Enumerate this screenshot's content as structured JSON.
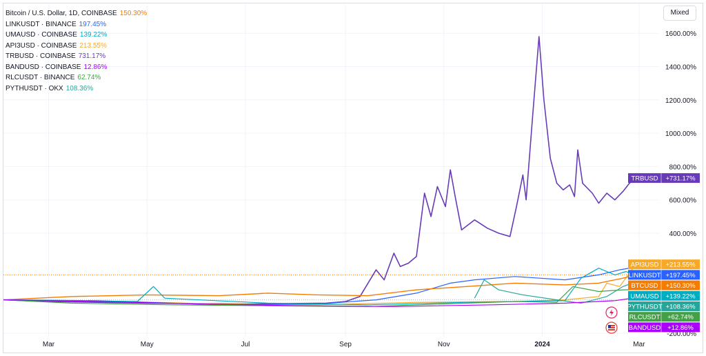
{
  "scale_button": "Mixed",
  "legend": [
    {
      "name": "Bitcoin / U.S. Dollar, 1D, COINBASE",
      "value": "150.30%",
      "color": "#f57c00"
    },
    {
      "name": "LINKUSDT · BINANCE",
      "value": "197.45%",
      "color": "#2962ff"
    },
    {
      "name": "UMAUSD · COINBASE",
      "value": "139.22%",
      "color": "#00acc1"
    },
    {
      "name": "API3USD · COINBASE",
      "value": "213.55%",
      "color": "#f9a825"
    },
    {
      "name": "TRBUSD · COINBASE",
      "value": "731.17%",
      "color": "#673ab7"
    },
    {
      "name": "BANDUSD · COINBASE",
      "value": "12.86%",
      "color": "#aa00ff"
    },
    {
      "name": "RLCUSDT · BINANCE",
      "value": "62.74%",
      "color": "#43a047"
    },
    {
      "name": "PYTHUSDT · OKX",
      "value": "108.36%",
      "color": "#26a69a"
    }
  ],
  "chart_data": {
    "type": "line",
    "y_unit": "%",
    "ylim": [
      -200,
      1700
    ],
    "y_ticks": [
      {
        "label": "1600.00%",
        "value": 1600
      },
      {
        "label": "1400.00%",
        "value": 1400
      },
      {
        "label": "1200.00%",
        "value": 1200
      },
      {
        "label": "1000.00%",
        "value": 1000
      },
      {
        "label": "800.00%",
        "value": 800
      },
      {
        "label": "600.00%",
        "value": 600
      },
      {
        "label": "400.00%",
        "value": 400
      },
      {
        "label": "-200.00%",
        "value": -200
      }
    ],
    "x_range": [
      "2023-02-01",
      "2024-03-13"
    ],
    "x_ticks": [
      {
        "label": "Mar",
        "date": "2023-03-01",
        "bold": false
      },
      {
        "label": "May",
        "date": "2023-05-01",
        "bold": false
      },
      {
        "label": "Jul",
        "date": "2023-07-01",
        "bold": false
      },
      {
        "label": "Sep",
        "date": "2023-09-01",
        "bold": false
      },
      {
        "label": "Nov",
        "date": "2023-11-01",
        "bold": false
      },
      {
        "label": "2024",
        "date": "2024-01-01",
        "bold": true
      },
      {
        "label": "Mar",
        "date": "2024-03-01",
        "bold": false
      }
    ],
    "series": [
      {
        "name": "TRBUSD",
        "label": "+731.17%",
        "color": "#673ab7",
        "width": 1.6,
        "points": [
          [
            "2023-02-01",
            0
          ],
          [
            "2023-03-01",
            -10
          ],
          [
            "2023-05-01",
            -20
          ],
          [
            "2023-07-01",
            -25
          ],
          [
            "2023-08-20",
            -20
          ],
          [
            "2023-09-01",
            -10
          ],
          [
            "2023-09-10",
            20
          ],
          [
            "2023-09-20",
            180
          ],
          [
            "2023-09-25",
            120
          ],
          [
            "2023-10-01",
            280
          ],
          [
            "2023-10-05",
            200
          ],
          [
            "2023-10-10",
            220
          ],
          [
            "2023-10-15",
            260
          ],
          [
            "2023-10-20",
            640
          ],
          [
            "2023-10-24",
            500
          ],
          [
            "2023-10-28",
            680
          ],
          [
            "2023-11-02",
            560
          ],
          [
            "2023-11-05",
            780
          ],
          [
            "2023-11-08",
            620
          ],
          [
            "2023-11-12",
            420
          ],
          [
            "2023-11-20",
            480
          ],
          [
            "2023-11-28",
            430
          ],
          [
            "2023-12-05",
            400
          ],
          [
            "2023-12-12",
            380
          ],
          [
            "2023-12-16",
            560
          ],
          [
            "2023-12-20",
            750
          ],
          [
            "2023-12-22",
            600
          ],
          [
            "2023-12-26",
            1100
          ],
          [
            "2023-12-30",
            1580
          ],
          [
            "2024-01-02",
            1200
          ],
          [
            "2024-01-06",
            850
          ],
          [
            "2024-01-10",
            700
          ],
          [
            "2024-01-14",
            660
          ],
          [
            "2024-01-18",
            690
          ],
          [
            "2024-01-21",
            620
          ],
          [
            "2024-01-23",
            900
          ],
          [
            "2024-01-26",
            700
          ],
          [
            "2024-02-01",
            640
          ],
          [
            "2024-02-05",
            580
          ],
          [
            "2024-02-10",
            640
          ],
          [
            "2024-02-15",
            600
          ],
          [
            "2024-02-20",
            650
          ],
          [
            "2024-02-24",
            700
          ],
          [
            "2024-02-28",
            731
          ]
        ]
      },
      {
        "name": "API3USD",
        "label": "+213.55%",
        "color": "#f9a825",
        "width": 1.2,
        "points": [
          [
            "2023-02-01",
            0
          ],
          [
            "2023-04-15",
            -10
          ],
          [
            "2023-06-15",
            -25
          ],
          [
            "2023-08-15",
            -30
          ],
          [
            "2023-10-15",
            -15
          ],
          [
            "2023-12-15",
            -10
          ],
          [
            "2024-01-15",
            0
          ],
          [
            "2024-02-05",
            20
          ],
          [
            "2024-02-10",
            100
          ],
          [
            "2024-02-18",
            80
          ],
          [
            "2024-02-24",
            160
          ],
          [
            "2024-02-28",
            213
          ]
        ]
      },
      {
        "name": "LINKUSDT",
        "label": "+197.45%",
        "color": "#2962ff",
        "width": 1.2,
        "points": [
          [
            "2023-02-01",
            0
          ],
          [
            "2023-04-01",
            -5
          ],
          [
            "2023-06-15",
            -30
          ],
          [
            "2023-08-15",
            -25
          ],
          [
            "2023-09-20",
            0
          ],
          [
            "2023-10-15",
            40
          ],
          [
            "2023-11-05",
            100
          ],
          [
            "2023-11-20",
            120
          ],
          [
            "2023-12-15",
            140
          ],
          [
            "2024-01-15",
            120
          ],
          [
            "2024-02-05",
            150
          ],
          [
            "2024-02-18",
            180
          ],
          [
            "2024-02-28",
            197
          ]
        ]
      },
      {
        "name": "BTCUSD",
        "label": "+150.30%",
        "color": "#f57c00",
        "width": 1.4,
        "points": [
          [
            "2023-02-01",
            0
          ],
          [
            "2023-03-15",
            20
          ],
          [
            "2023-05-01",
            30
          ],
          [
            "2023-06-15",
            25
          ],
          [
            "2023-07-15",
            40
          ],
          [
            "2023-08-15",
            30
          ],
          [
            "2023-09-15",
            25
          ],
          [
            "2023-10-15",
            60
          ],
          [
            "2023-11-15",
            80
          ],
          [
            "2023-12-15",
            100
          ],
          [
            "2024-01-15",
            90
          ],
          [
            "2024-02-05",
            100
          ],
          [
            "2024-02-20",
            130
          ],
          [
            "2024-02-28",
            150
          ]
        ]
      },
      {
        "name": "UMAUSD",
        "label": "+139.22%",
        "color": "#00acc1",
        "width": 1.2,
        "points": [
          [
            "2023-02-01",
            0
          ],
          [
            "2023-04-25",
            -10
          ],
          [
            "2023-05-05",
            80
          ],
          [
            "2023-05-12",
            10
          ],
          [
            "2023-07-15",
            -20
          ],
          [
            "2023-09-15",
            -30
          ],
          [
            "2023-11-15",
            -15
          ],
          [
            "2024-01-15",
            -5
          ],
          [
            "2024-01-25",
            130
          ],
          [
            "2024-02-05",
            190
          ],
          [
            "2024-02-15",
            150
          ],
          [
            "2024-02-22",
            170
          ],
          [
            "2024-02-28",
            139
          ]
        ]
      },
      {
        "name": "PYTHUSDT",
        "label": "+108.36%",
        "color": "#26a69a",
        "width": 1.2,
        "points": [
          [
            "2023-11-20",
            10
          ],
          [
            "2023-11-26",
            120
          ],
          [
            "2023-12-05",
            60
          ],
          [
            "2023-12-20",
            30
          ],
          [
            "2024-01-10",
            0
          ],
          [
            "2024-01-25",
            -20
          ],
          [
            "2024-02-10",
            20
          ],
          [
            "2024-02-20",
            80
          ],
          [
            "2024-02-28",
            108
          ]
        ]
      },
      {
        "name": "RLCUSDT",
        "label": "+62.74%",
        "color": "#43a047",
        "width": 1.2,
        "points": [
          [
            "2023-02-01",
            0
          ],
          [
            "2023-03-15",
            -20
          ],
          [
            "2023-05-15",
            -30
          ],
          [
            "2023-07-15",
            -35
          ],
          [
            "2023-09-15",
            -40
          ],
          [
            "2023-11-15",
            -20
          ],
          [
            "2023-12-15",
            -10
          ],
          [
            "2024-01-10",
            -15
          ],
          [
            "2024-01-20",
            80
          ],
          [
            "2024-02-05",
            50
          ],
          [
            "2024-02-20",
            60
          ],
          [
            "2024-02-28",
            62
          ]
        ]
      },
      {
        "name": "BANDUSD",
        "label": "+12.86%",
        "color": "#aa00ff",
        "width": 1.2,
        "points": [
          [
            "2023-02-01",
            0
          ],
          [
            "2023-04-01",
            -10
          ],
          [
            "2023-06-01",
            -25
          ],
          [
            "2023-08-01",
            -35
          ],
          [
            "2023-10-01",
            -40
          ],
          [
            "2023-12-01",
            -30
          ],
          [
            "2024-01-15",
            -20
          ],
          [
            "2024-02-15",
            -5
          ],
          [
            "2024-02-28",
            13
          ]
        ]
      }
    ],
    "price_line_value": 150
  }
}
